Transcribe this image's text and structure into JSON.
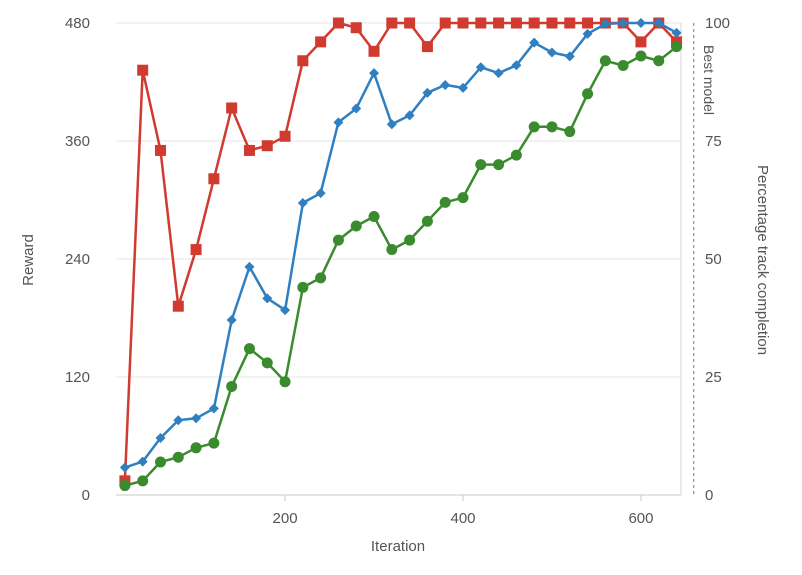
{
  "chart_data": {
    "type": "line",
    "xlabel": "Iteration",
    "ylabel": "Reward",
    "y2label": "Percentage track completion",
    "xlim": [
      10,
      645
    ],
    "ylim": [
      0,
      480
    ],
    "y2lim": [
      0,
      100
    ],
    "x_ticks": [
      200,
      400,
      600
    ],
    "y_ticks": [
      0,
      120,
      240,
      360,
      480
    ],
    "y2_ticks": [
      0,
      25,
      50,
      75,
      100
    ],
    "grid": true,
    "legend": "none",
    "annotation": {
      "text": "Best model",
      "x": 620
    },
    "series": [
      {
        "axis": "right",
        "marker": "square",
        "color": "#d03a2f",
        "x": [
          20,
          40,
          60,
          80,
          100,
          120,
          140,
          160,
          180,
          200,
          220,
          240,
          260,
          280,
          300,
          320,
          340,
          360,
          380,
          400,
          420,
          440,
          460,
          480,
          500,
          520,
          540,
          560,
          580,
          600,
          620,
          640
        ],
        "values": [
          3,
          90,
          73,
          40,
          52,
          67,
          82,
          73,
          74,
          76,
          92,
          96,
          100,
          99,
          94,
          100,
          100,
          95,
          100,
          100,
          100,
          100,
          100,
          100,
          100,
          100,
          100,
          100,
          100,
          96,
          100,
          96
        ]
      },
      {
        "axis": "left",
        "marker": "diamond",
        "color": "#2f7fc1",
        "x": [
          20,
          40,
          60,
          80,
          100,
          120,
          140,
          160,
          180,
          200,
          220,
          240,
          260,
          280,
          300,
          320,
          340,
          360,
          380,
          400,
          420,
          440,
          460,
          480,
          500,
          520,
          540,
          560,
          580,
          600,
          620,
          640
        ],
        "values": [
          28,
          34,
          58,
          76,
          78,
          88,
          178,
          232,
          200,
          188,
          297,
          307,
          379,
          393,
          429,
          377,
          386,
          409,
          417,
          414,
          435,
          429,
          437,
          460,
          450,
          446,
          469,
          479,
          480,
          480,
          480,
          470
        ]
      },
      {
        "axis": "right",
        "marker": "circle",
        "color": "#3a8a2e",
        "x": [
          20,
          40,
          60,
          80,
          100,
          120,
          140,
          160,
          180,
          200,
          220,
          240,
          260,
          280,
          300,
          320,
          340,
          360,
          380,
          400,
          420,
          440,
          460,
          480,
          500,
          520,
          540,
          560,
          580,
          600,
          620,
          640
        ],
        "values": [
          2,
          3,
          7,
          8,
          10,
          11,
          23,
          31,
          28,
          24,
          44,
          46,
          54,
          57,
          59,
          52,
          54,
          58,
          62,
          63,
          70,
          70,
          72,
          78,
          78,
          77,
          85,
          92,
          91,
          93,
          92,
          95
        ]
      }
    ]
  }
}
